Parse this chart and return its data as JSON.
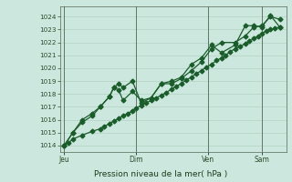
{
  "background_color": "#cce8de",
  "grid_color": "#aaccbb",
  "line_color": "#1a5c2a",
  "title": "Pression niveau de la mer( hPa )",
  "ylim": [
    1013.5,
    1024.8
  ],
  "yticks": [
    1014,
    1015,
    1016,
    1017,
    1018,
    1019,
    1020,
    1021,
    1022,
    1023,
    1024
  ],
  "day_labels": [
    "Jeu",
    "Dim",
    "Ven",
    "Sam"
  ],
  "day_positions": [
    0.0,
    0.333,
    0.667,
    0.917
  ],
  "vline_positions": [
    0.0,
    0.333,
    0.667,
    0.917
  ],
  "s1_x": [
    0.0,
    0.02,
    0.04,
    0.083,
    0.13,
    0.167,
    0.187,
    0.21,
    0.23,
    0.253,
    0.273,
    0.297,
    0.317,
    0.333,
    0.357,
    0.38,
    0.403,
    0.427,
    0.45,
    0.473,
    0.5,
    0.52,
    0.543,
    0.567,
    0.59,
    0.613,
    0.637,
    0.66,
    0.683,
    0.707,
    0.73,
    0.75,
    0.77,
    0.793,
    0.817,
    0.84,
    0.86,
    0.88,
    0.9,
    0.917,
    0.937,
    0.957,
    0.977,
    1.0
  ],
  "s1_y": [
    1014.0,
    1014.2,
    1014.5,
    1014.8,
    1015.1,
    1015.3,
    1015.5,
    1015.7,
    1015.9,
    1016.1,
    1016.3,
    1016.5,
    1016.7,
    1016.9,
    1017.1,
    1017.3,
    1017.5,
    1017.7,
    1017.9,
    1018.1,
    1018.4,
    1018.6,
    1018.8,
    1019.1,
    1019.3,
    1019.6,
    1019.8,
    1020.1,
    1020.3,
    1020.6,
    1020.8,
    1021.0,
    1021.3,
    1021.5,
    1021.7,
    1021.9,
    1022.1,
    1022.3,
    1022.5,
    1022.7,
    1022.9,
    1023.0,
    1023.1,
    1023.2
  ],
  "s2_x": [
    0.0,
    0.04,
    0.083,
    0.13,
    0.167,
    0.21,
    0.23,
    0.253,
    0.273,
    0.317,
    0.357,
    0.403,
    0.45,
    0.5,
    0.543,
    0.59,
    0.637,
    0.683,
    0.73,
    0.793,
    0.84,
    0.88,
    0.917,
    0.957,
    1.0
  ],
  "s2_y": [
    1014.0,
    1015.0,
    1015.8,
    1016.3,
    1017.0,
    1017.8,
    1018.5,
    1018.8,
    1018.5,
    1019.0,
    1017.3,
    1017.7,
    1018.8,
    1019.0,
    1019.3,
    1020.3,
    1020.8,
    1021.8,
    1021.2,
    1021.8,
    1023.3,
    1023.3,
    1023.2,
    1024.1,
    1023.2
  ],
  "s3_x": [
    0.0,
    0.04,
    0.083,
    0.13,
    0.167,
    0.21,
    0.23,
    0.253,
    0.273,
    0.317,
    0.357,
    0.403,
    0.45,
    0.5,
    0.543,
    0.59,
    0.637,
    0.683,
    0.73,
    0.793,
    0.84,
    0.88,
    0.917,
    0.957,
    1.0
  ],
  "s3_y": [
    1014.0,
    1015.0,
    1016.0,
    1016.5,
    1017.0,
    1017.8,
    1018.5,
    1018.3,
    1017.5,
    1018.2,
    1017.5,
    1017.7,
    1018.8,
    1018.8,
    1019.2,
    1019.8,
    1020.5,
    1021.5,
    1022.0,
    1022.0,
    1022.5,
    1023.2,
    1023.3,
    1024.0,
    1023.8
  ]
}
